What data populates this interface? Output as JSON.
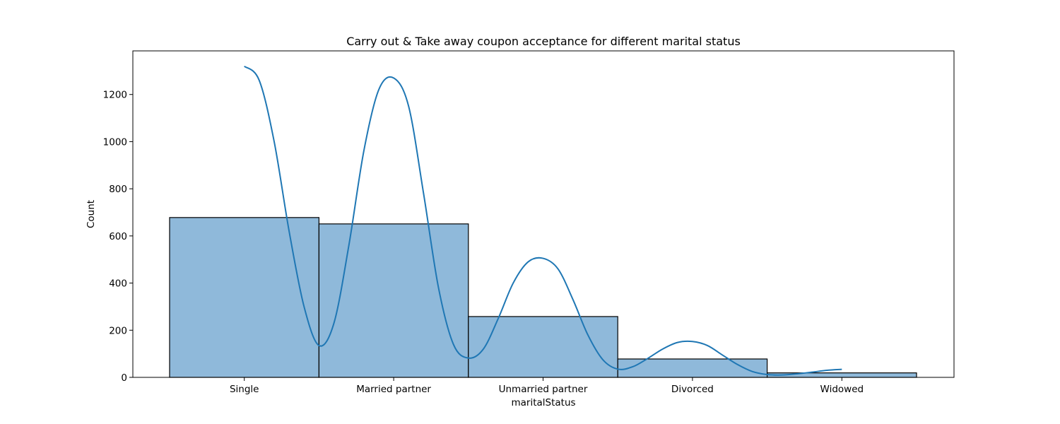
{
  "chart_data": {
    "type": "bar",
    "title": "Carry out & Take away coupon acceptance for different marital status",
    "xlabel": "maritalStatus",
    "ylabel": "Count",
    "categories": [
      "Single",
      "Married partner",
      "Unmarried partner",
      "Divorced",
      "Widowed"
    ],
    "values": [
      678,
      651,
      258,
      78,
      19
    ],
    "ylim": [
      0,
      1385
    ],
    "yticks": [
      "0",
      "200",
      "400",
      "600",
      "800",
      "1000",
      "1200"
    ],
    "grid": false,
    "kde": {
      "x": [
        0.0,
        0.1,
        0.2,
        0.3,
        0.4,
        0.5,
        0.6,
        0.7,
        0.8,
        0.9,
        1.0,
        1.1,
        1.2,
        1.3,
        1.4,
        1.5,
        1.6,
        1.7,
        1.8,
        1.9,
        2.0,
        2.1,
        2.2,
        2.3,
        2.4,
        2.5,
        2.6,
        2.7,
        2.8,
        2.9,
        3.0,
        3.1,
        3.2,
        3.3,
        3.4,
        3.5,
        3.6,
        3.7,
        3.8,
        3.9,
        4.0
      ],
      "y": [
        1320,
        1260,
        1000,
        620,
        300,
        135,
        230,
        560,
        960,
        1220,
        1270,
        1150,
        780,
        380,
        140,
        82,
        120,
        250,
        400,
        490,
        505,
        460,
        330,
        180,
        75,
        35,
        45,
        80,
        120,
        148,
        152,
        135,
        95,
        55,
        25,
        12,
        10,
        15,
        22,
        30,
        34
      ]
    },
    "colors": {
      "bar_fill": "#8fb9da",
      "bar_edge": "#000000",
      "kde_line": "#1f77b4",
      "axes": "#000000"
    }
  }
}
